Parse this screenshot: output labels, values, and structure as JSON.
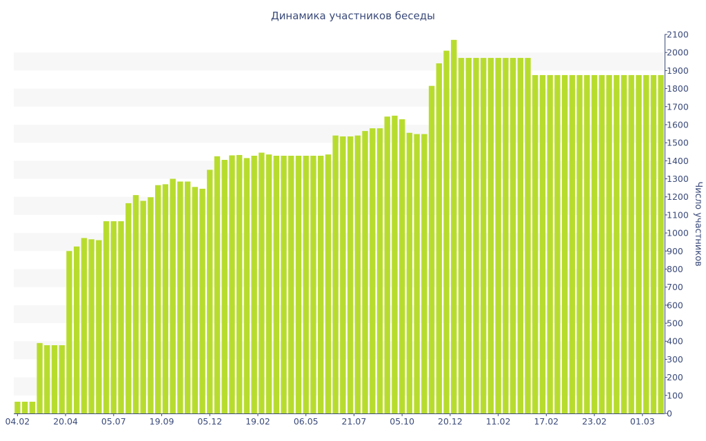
{
  "chart_data": {
    "type": "bar",
    "title": "Динамика участников беседы",
    "xlabel": "",
    "ylabel": "Число участников",
    "y_axis_side": "right",
    "ylim": [
      0,
      2100
    ],
    "yticks": [
      0,
      100,
      200,
      300,
      400,
      500,
      600,
      700,
      800,
      900,
      1000,
      1100,
      1200,
      1300,
      1400,
      1500,
      1600,
      1700,
      1800,
      1900,
      2000,
      2100
    ],
    "grid": "alternating horizontal bands",
    "legend": "none",
    "x_tick_labels": [
      {
        "label": "04.02",
        "index": 0
      },
      {
        "label": "20.04",
        "index": 6.5
      },
      {
        "label": "05.07",
        "index": 13
      },
      {
        "label": "19.09",
        "index": 19.5
      },
      {
        "label": "05.12",
        "index": 26
      },
      {
        "label": "19.02",
        "index": 32.5
      },
      {
        "label": "06.05",
        "index": 39
      },
      {
        "label": "21.07",
        "index": 45.5
      },
      {
        "label": "05.10",
        "index": 52
      },
      {
        "label": "20.12",
        "index": 58.5
      },
      {
        "label": "11.02",
        "index": 65
      },
      {
        "label": "17.02",
        "index": 71.5
      },
      {
        "label": "23.02",
        "index": 78
      },
      {
        "label": "01.03",
        "index": 84.5
      }
    ],
    "values": [
      65,
      65,
      65,
      390,
      378,
      378,
      378,
      900,
      925,
      972,
      965,
      960,
      1065,
      1065,
      1065,
      1165,
      1210,
      1178,
      1198,
      1265,
      1270,
      1300,
      1285,
      1285,
      1255,
      1245,
      1350,
      1425,
      1405,
      1430,
      1432,
      1415,
      1428,
      1445,
      1435,
      1428,
      1428,
      1428,
      1428,
      1428,
      1428,
      1428,
      1435,
      1540,
      1535,
      1535,
      1540,
      1565,
      1580,
      1580,
      1645,
      1650,
      1630,
      1555,
      1548,
      1548,
      1815,
      1940,
      2010,
      2070,
      1970,
      1970,
      1970,
      1970,
      1970,
      1970,
      1970,
      1970,
      1970,
      1970,
      1875,
      1875,
      1875,
      1875,
      1875,
      1875,
      1875,
      1875,
      1875,
      1875,
      1875,
      1875,
      1875,
      1875,
      1875,
      1875,
      1875,
      1875
    ],
    "colors": {
      "bar": "#b8dc2e",
      "band": "#f7f7f7",
      "text": "#3a4a7a",
      "axis": "#3a4a7a"
    }
  }
}
